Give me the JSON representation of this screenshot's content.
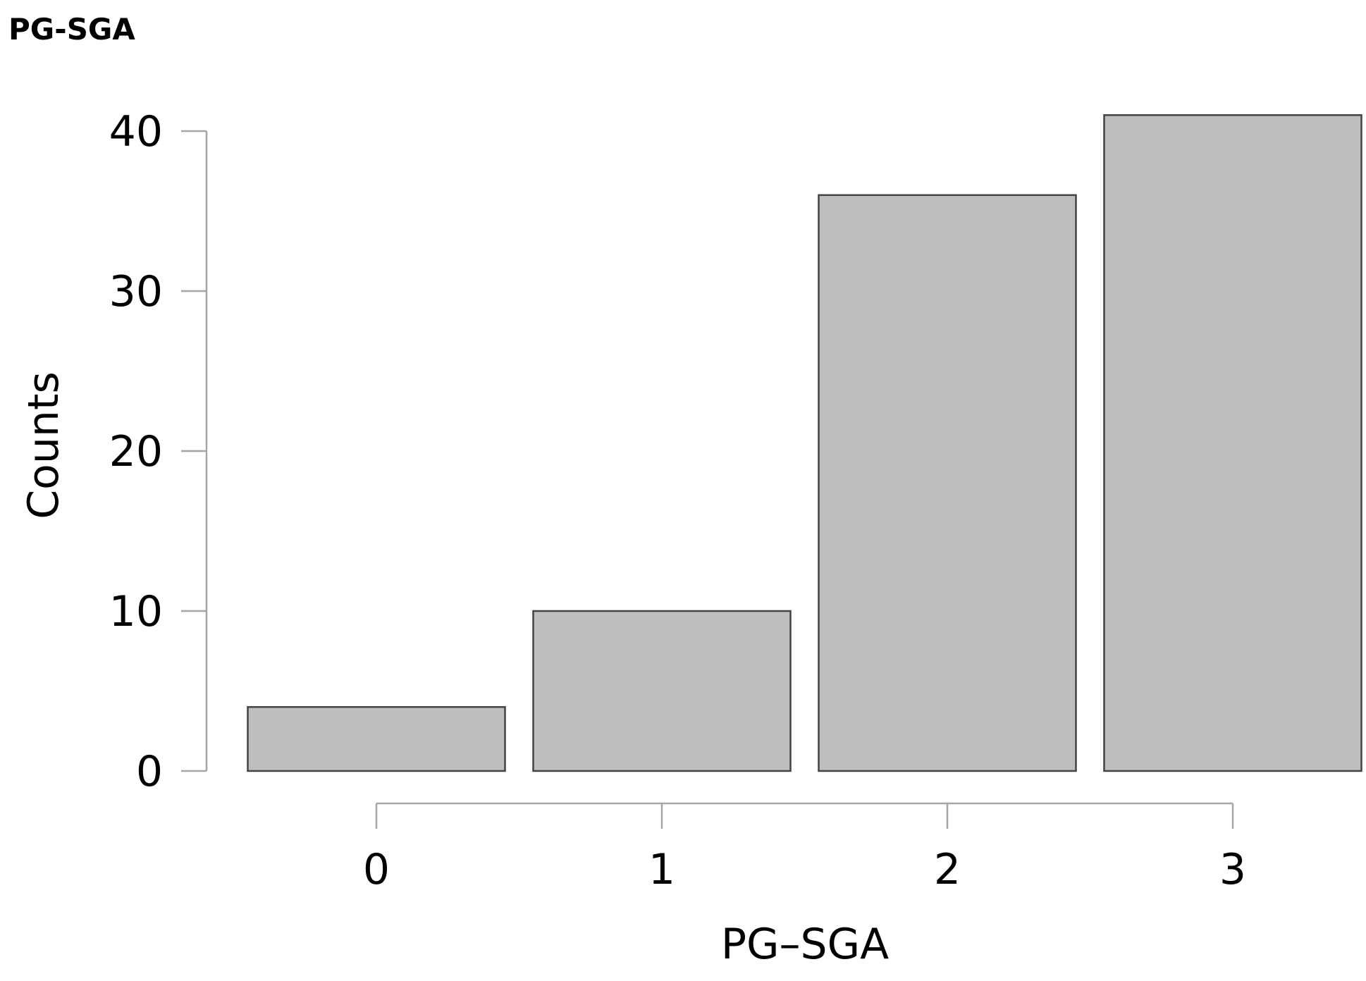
{
  "chart_data": {
    "type": "bar",
    "title": "PG-SGA",
    "xlabel": "PG–SGA",
    "ylabel": "Counts",
    "categories": [
      "0",
      "1",
      "2",
      "3"
    ],
    "values": [
      4,
      10,
      36,
      41
    ],
    "yticks": [
      0,
      10,
      20,
      30,
      40
    ],
    "ylim": [
      0,
      40
    ],
    "grid": false,
    "legend": "none",
    "colors": {
      "bar_fill": "#bebebe",
      "bar_stroke": "#444444",
      "axis": "#a6a6a6"
    }
  }
}
